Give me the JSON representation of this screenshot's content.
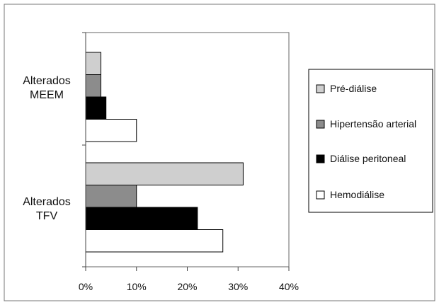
{
  "chart_data": {
    "type": "bar",
    "orientation": "horizontal",
    "categories": [
      "Alterados MEEM",
      "Alterados TFV"
    ],
    "category_label_lines": [
      [
        "Alterados",
        "MEEM"
      ],
      [
        "Alterados",
        "TFV"
      ]
    ],
    "series": [
      {
        "name": "Pré-diálise",
        "color": "#cfcfcf",
        "values": [
          3,
          31
        ]
      },
      {
        "name": "Hipertensão arterial",
        "color": "#8c8c8c",
        "values": [
          3,
          10
        ]
      },
      {
        "name": "Diálise peritoneal",
        "color": "#000000",
        "values": [
          4,
          22
        ]
      },
      {
        "name": "Hemodiálise",
        "color": "#ffffff",
        "values": [
          10,
          27
        ]
      }
    ],
    "x_ticks": [
      "0%",
      "10%",
      "20%",
      "30%",
      "40%"
    ],
    "xlim": [
      0,
      40
    ],
    "title": "",
    "xlabel": "",
    "ylabel": "",
    "grid": false,
    "legend_position": "right"
  }
}
